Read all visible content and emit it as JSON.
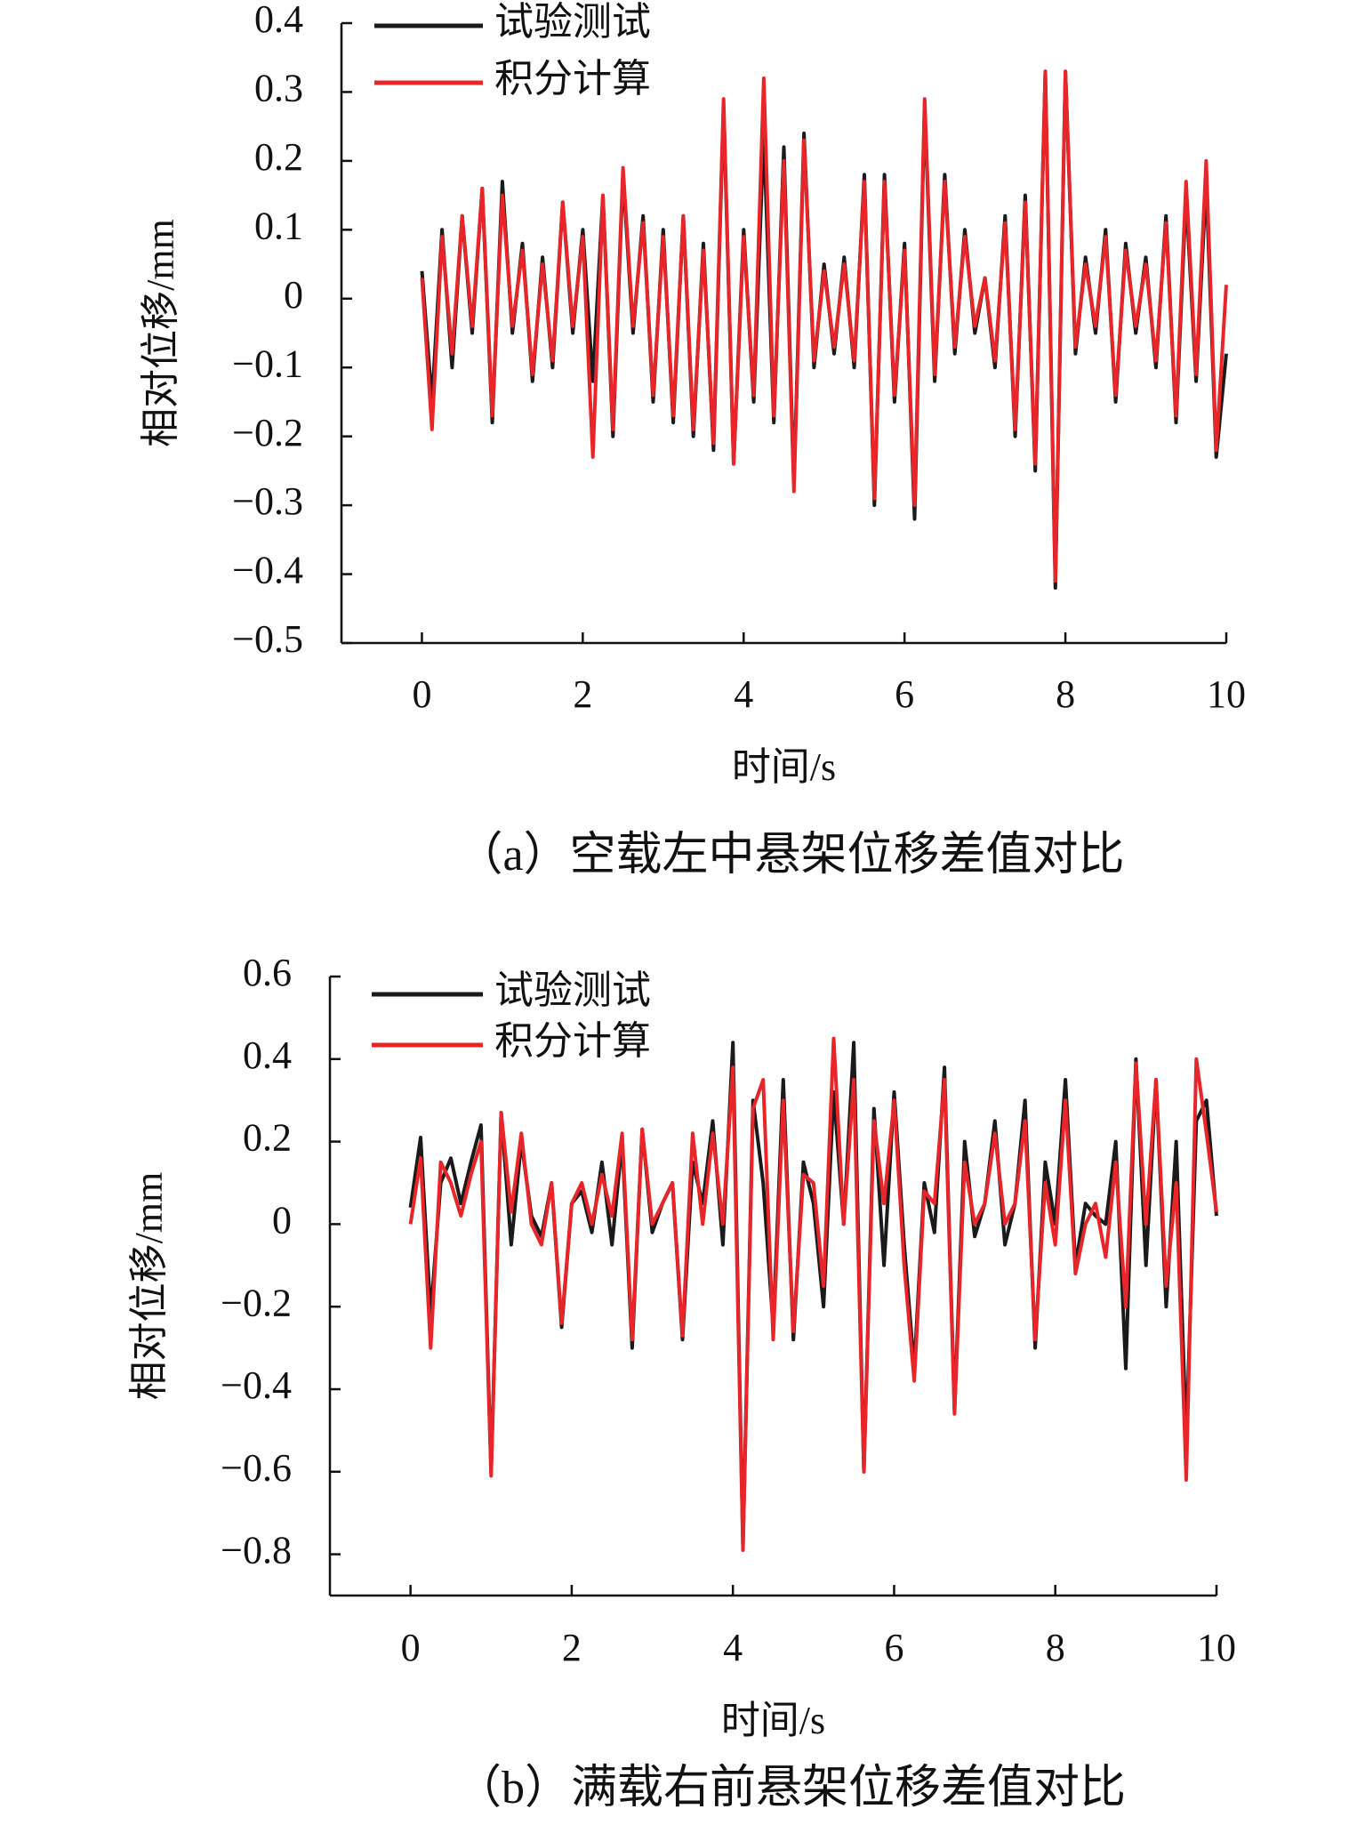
{
  "chart_data": [
    {
      "type": "line",
      "caption": "（a）空载左中悬架位移差值对比",
      "xlabel": "时间/s",
      "ylabel": "相对位移/mm",
      "xlim": [
        -1,
        10
      ],
      "xticks": [
        0,
        2,
        4,
        6,
        8,
        10
      ],
      "ylim": [
        -0.5,
        0.4
      ],
      "yticks": [
        {
          "value": -0.5,
          "label": "−0.5"
        },
        {
          "value": -0.4,
          "label": "−0.4"
        },
        {
          "value": -0.3,
          "label": "−0.3"
        },
        {
          "value": -0.2,
          "label": "−0.2"
        },
        {
          "value": -0.1,
          "label": "−0.1"
        },
        0,
        0.1,
        0.2,
        0.3,
        0.4
      ],
      "legend": "upper left",
      "x": [
        0,
        0.125,
        0.25,
        0.375,
        0.5,
        0.625,
        0.75,
        0.875,
        1,
        1.125,
        1.25,
        1.375,
        1.5,
        1.625,
        1.75,
        1.875,
        2,
        2.125,
        2.25,
        2.375,
        2.5,
        2.625,
        2.75,
        2.875,
        3,
        3.125,
        3.25,
        3.375,
        3.5,
        3.625,
        3.75,
        3.875,
        4,
        4.125,
        4.25,
        4.375,
        4.5,
        4.625,
        4.75,
        4.875,
        5,
        5.125,
        5.25,
        5.375,
        5.5,
        5.625,
        5.75,
        5.875,
        6,
        6.125,
        6.25,
        6.375,
        6.5,
        6.625,
        6.75,
        6.875,
        7,
        7.125,
        7.25,
        7.375,
        7.5,
        7.625,
        7.75,
        7.875,
        8,
        8.125,
        8.25,
        8.375,
        8.5,
        8.625,
        8.75,
        8.875,
        9,
        9.125,
        9.25,
        9.375,
        9.5,
        9.625,
        9.75,
        9.875,
        10
      ],
      "series": [
        {
          "name": "试验测试",
          "color": "#1a1a1a",
          "values": [
            0.04,
            -0.15,
            0.1,
            -0.1,
            0.12,
            -0.05,
            0.16,
            -0.18,
            0.17,
            -0.05,
            0.08,
            -0.12,
            0.06,
            -0.1,
            0.14,
            -0.05,
            0.1,
            -0.12,
            0.15,
            -0.2,
            0.18,
            -0.05,
            0.12,
            -0.15,
            0.1,
            -0.18,
            0.12,
            -0.2,
            0.08,
            -0.22,
            0.28,
            -0.24,
            0.1,
            -0.15,
            0.24,
            -0.18,
            0.22,
            -0.27,
            0.24,
            -0.1,
            0.05,
            -0.08,
            0.06,
            -0.1,
            0.18,
            -0.3,
            0.18,
            -0.15,
            0.08,
            -0.32,
            0.28,
            -0.12,
            0.18,
            -0.08,
            0.1,
            -0.05,
            0.03,
            -0.1,
            0.12,
            -0.2,
            0.15,
            -0.25,
            0.33,
            -0.42,
            0.33,
            -0.08,
            0.06,
            -0.05,
            0.1,
            -0.15,
            0.08,
            -0.05,
            0.06,
            -0.1,
            0.12,
            -0.18,
            0.15,
            -0.12,
            0.17,
            -0.23,
            -0.08
          ]
        },
        {
          "name": "积分计算",
          "color": "#e8262a",
          "values": [
            0.03,
            -0.19,
            0.09,
            -0.08,
            0.12,
            -0.04,
            0.16,
            -0.17,
            0.15,
            -0.04,
            0.07,
            -0.11,
            0.05,
            -0.09,
            0.14,
            -0.04,
            0.09,
            -0.23,
            0.15,
            -0.19,
            0.19,
            -0.04,
            0.11,
            -0.14,
            0.09,
            -0.17,
            0.12,
            -0.19,
            0.07,
            -0.21,
            0.29,
            -0.24,
            0.09,
            -0.14,
            0.32,
            -0.17,
            0.2,
            -0.28,
            0.23,
            -0.09,
            0.04,
            -0.07,
            0.05,
            -0.09,
            0.17,
            -0.29,
            0.17,
            -0.14,
            0.07,
            -0.3,
            0.29,
            -0.11,
            0.17,
            -0.07,
            0.09,
            -0.04,
            0.03,
            -0.09,
            0.11,
            -0.19,
            0.14,
            -0.24,
            0.33,
            -0.41,
            0.33,
            -0.07,
            0.05,
            -0.04,
            0.09,
            -0.14,
            0.07,
            -0.04,
            0.05,
            -0.09,
            0.11,
            -0.17,
            0.17,
            -0.11,
            0.2,
            -0.22,
            0.02
          ]
        }
      ]
    },
    {
      "type": "line",
      "caption": "（b）满载右前悬架位移差值对比",
      "xlabel": "时间/s",
      "ylabel": "相对位移/mm",
      "xlim": [
        -1,
        10
      ],
      "xticks": [
        0,
        2,
        4,
        6,
        8,
        10
      ],
      "ylim": [
        -0.9,
        0.6
      ],
      "yticks": [
        {
          "value": -0.8,
          "label": "−0.8"
        },
        {
          "value": -0.6,
          "label": "−0.6"
        },
        {
          "value": -0.4,
          "label": "−0.4"
        },
        {
          "value": -0.2,
          "label": "−0.2"
        },
        0,
        0.2,
        0.4,
        0.6
      ],
      "legend": "upper left",
      "x": [
        0,
        0.125,
        0.25,
        0.375,
        0.5,
        0.625,
        0.75,
        0.875,
        1,
        1.125,
        1.25,
        1.375,
        1.5,
        1.625,
        1.75,
        1.875,
        2,
        2.125,
        2.25,
        2.375,
        2.5,
        2.625,
        2.75,
        2.875,
        3,
        3.125,
        3.25,
        3.375,
        3.5,
        3.625,
        3.75,
        3.875,
        4,
        4.125,
        4.25,
        4.375,
        4.5,
        4.625,
        4.75,
        4.875,
        5,
        5.125,
        5.25,
        5.375,
        5.5,
        5.625,
        5.75,
        5.875,
        6,
        6.125,
        6.25,
        6.375,
        6.5,
        6.625,
        6.75,
        6.875,
        7,
        7.125,
        7.25,
        7.375,
        7.5,
        7.625,
        7.75,
        7.875,
        8,
        8.125,
        8.25,
        8.375,
        8.5,
        8.625,
        8.75,
        8.875,
        9,
        9.125,
        9.25,
        9.375,
        9.5,
        9.625,
        9.75,
        9.875,
        10
      ],
      "series": [
        {
          "name": "试验测试",
          "color": "#1a1a1a",
          "values": [
            0.04,
            0.21,
            -0.22,
            0.1,
            0.16,
            0.05,
            0.15,
            0.24,
            -0.6,
            0.27,
            -0.05,
            0.2,
            0.02,
            -0.03,
            0.1,
            -0.25,
            0.05,
            0.08,
            -0.02,
            0.15,
            -0.05,
            0.2,
            -0.3,
            0.23,
            -0.02,
            0.05,
            0.1,
            -0.28,
            0.15,
            0.05,
            0.25,
            -0.05,
            0.44,
            -0.78,
            0.3,
            0.1,
            -0.25,
            0.35,
            -0.28,
            0.15,
            0.05,
            -0.2,
            0.32,
            0.0,
            0.44,
            -0.6,
            0.28,
            -0.1,
            0.32,
            -0.05,
            -0.35,
            0.1,
            -0.02,
            0.38,
            -0.45,
            0.2,
            -0.03,
            0.05,
            0.25,
            -0.05,
            0.05,
            0.3,
            -0.3,
            0.15,
            0.0,
            0.35,
            -0.1,
            0.05,
            0.02,
            0.0,
            0.2,
            -0.35,
            0.4,
            -0.1,
            0.35,
            -0.2,
            0.2,
            -0.52,
            0.25,
            0.3,
            0.02
          ]
        },
        {
          "name": "积分计算",
          "color": "#e8262a",
          "values": [
            0.0,
            0.16,
            -0.3,
            0.15,
            0.1,
            0.02,
            0.12,
            0.2,
            -0.61,
            0.27,
            0.03,
            0.22,
            0.0,
            -0.05,
            0.1,
            -0.24,
            0.05,
            0.1,
            0.0,
            0.12,
            0.02,
            0.22,
            -0.28,
            0.23,
            0.0,
            0.05,
            0.1,
            -0.27,
            0.22,
            0.0,
            0.22,
            0.0,
            0.38,
            -0.79,
            0.28,
            0.35,
            -0.28,
            0.3,
            -0.26,
            0.12,
            0.1,
            -0.15,
            0.45,
            0.0,
            0.35,
            -0.6,
            0.25,
            0.05,
            0.3,
            -0.1,
            -0.38,
            0.08,
            0.05,
            0.35,
            -0.46,
            0.15,
            0.0,
            0.05,
            0.22,
            0.0,
            0.05,
            0.25,
            -0.28,
            0.1,
            -0.05,
            0.3,
            -0.12,
            0.0,
            0.05,
            -0.08,
            0.15,
            -0.2,
            0.39,
            0.0,
            0.35,
            -0.15,
            0.1,
            -0.62,
            0.4,
            0.22,
            0.03
          ]
        }
      ]
    }
  ]
}
